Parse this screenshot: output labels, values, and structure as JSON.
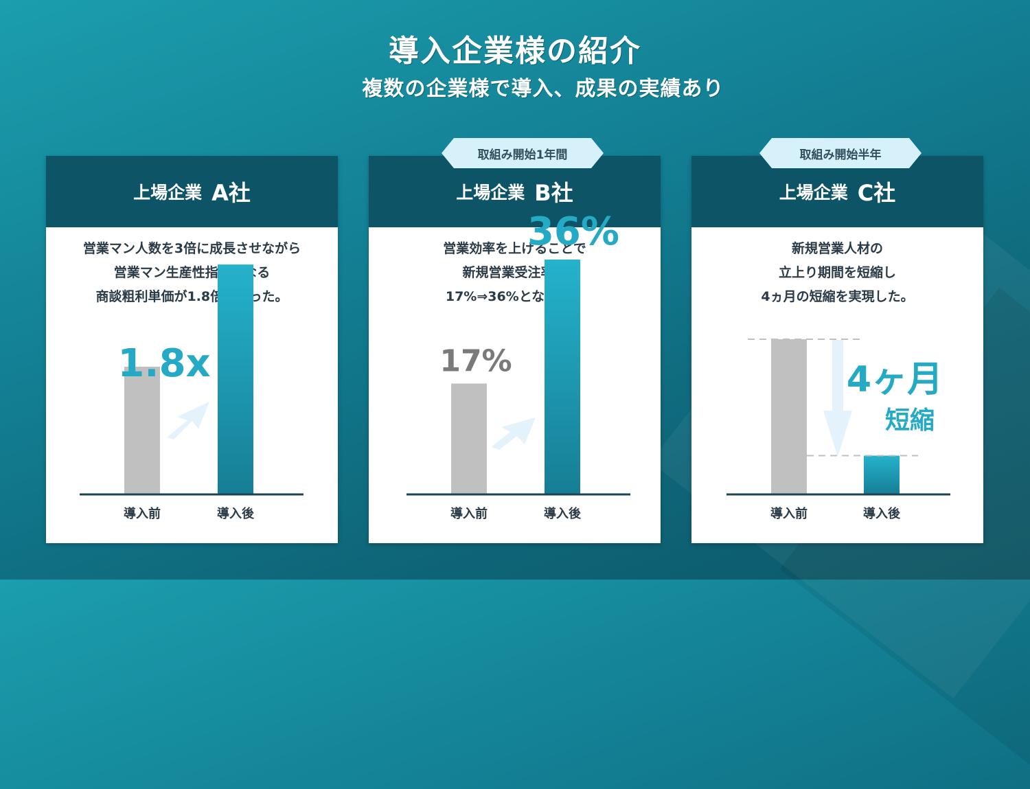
{
  "header": {
    "title": "導入企業様の紹介",
    "subtitle": "複数の企業様で導入、成果の実績あり"
  },
  "colors": {
    "card_header": "#0d5467",
    "bar_before": "#c0c0c0",
    "bar_after_top": "#25b2cc",
    "bar_after_bottom": "#167e95",
    "accent_text": "#25aac6",
    "tag_bg": "#d6f1fa"
  },
  "cards": [
    {
      "tag": "",
      "prefix": "上場企業",
      "name": "A社",
      "desc": [
        "営業マン人数を3倍に成長させながら",
        "営業マン生産性指標となる",
        "商談粗利単価が1.8倍となった。"
      ],
      "callout": "1.8x"
    },
    {
      "tag": "取組み開始1年間",
      "prefix": "上場企業",
      "name": "B社",
      "desc": [
        "営業効率を上げることで",
        "新規営業受注率が",
        "17%⇒36%となった。"
      ],
      "label_before": "17%",
      "label_after": "36%"
    },
    {
      "tag": "取組み開始半年",
      "prefix": "上場企業",
      "name": "C社",
      "desc": [
        "新規営業人材の",
        "立上り期間を短縮し",
        "4ヵ月の短縮を実現した。"
      ],
      "callout_big": "4ヶ月",
      "callout_small": "短縮"
    }
  ],
  "chart_data": [
    {
      "type": "bar",
      "categories": [
        "導入前",
        "導入後"
      ],
      "values": [
        1,
        1.8
      ],
      "annotations": [
        "1.8x"
      ],
      "ylim": [
        0,
        2
      ]
    },
    {
      "type": "bar",
      "categories": [
        "導入前",
        "導入後"
      ],
      "values": [
        17,
        36
      ],
      "annotations": [
        "17%",
        "36%"
      ],
      "ylim": [
        0,
        40
      ]
    },
    {
      "type": "bar",
      "categories": [
        "導入前",
        "導入後"
      ],
      "values": [
        100,
        25
      ],
      "annotations": [
        "4ヶ月",
        "短縮"
      ],
      "ylim": [
        0,
        100
      ]
    }
  ]
}
